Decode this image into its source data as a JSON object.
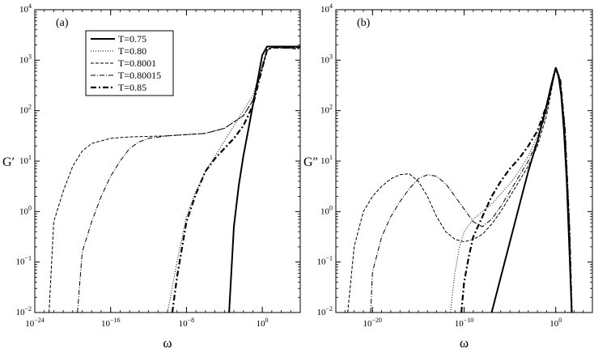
{
  "figure": {
    "background": "#ffffff",
    "ink": "#000000"
  },
  "chart_data": [
    {
      "type": "line",
      "panel_label": "(a)",
      "ylabel": "G′",
      "xlabel": "ω",
      "xscale": "log",
      "yscale": "log",
      "xlim_log10": [
        -24,
        4
      ],
      "ylim_log10": [
        -2,
        4
      ],
      "x_ticks": [
        {
          "log10": -24,
          "label": "10",
          "exp": "−24"
        },
        {
          "log10": -16,
          "label": "10",
          "exp": "−16"
        },
        {
          "log10": -8,
          "label": "10",
          "exp": "−8"
        },
        {
          "log10": 0,
          "label": "10",
          "exp": "0"
        }
      ],
      "y_ticks": [
        {
          "log10": -2,
          "label": "10",
          "exp": "−2"
        },
        {
          "log10": -1,
          "label": "10",
          "exp": "−1"
        },
        {
          "log10": 0,
          "label": "10",
          "exp": "0"
        },
        {
          "log10": 1,
          "label": "10",
          "exp": "1"
        },
        {
          "log10": 2,
          "label": "10",
          "exp": "2"
        },
        {
          "log10": 3,
          "label": "10",
          "exp": "3"
        },
        {
          "log10": 4,
          "label": "10",
          "exp": "4"
        }
      ],
      "legend": {
        "placement": "top-left",
        "entries": [
          {
            "label": "T=0.75",
            "style": "solid"
          },
          {
            "label": "T=0.80",
            "style": "dotted"
          },
          {
            "label": "T=0.8001",
            "style": "dashed"
          },
          {
            "label": "T=0.80015",
            "style": "dashdot"
          },
          {
            "label": "T=0.85",
            "style": "bold-dashdot"
          }
        ]
      },
      "series": [
        {
          "name": "T=0.75",
          "style": "solid",
          "log10_x": [
            -3.5,
            -3,
            -2.5,
            -2,
            -1.5,
            -1,
            -0.5,
            0,
            0.5,
            1,
            1.5,
            2,
            3,
            4
          ],
          "log10_y": [
            -2,
            -0.3,
            0.5,
            1.1,
            1.6,
            2.1,
            2.6,
            3.1,
            3.27,
            3.27,
            3.27,
            3.27,
            3.27,
            3.27
          ]
        },
        {
          "name": "T=0.80",
          "style": "dotted",
          "log10_x": [
            -10,
            -9,
            -8,
            -7,
            -6,
            -5,
            -4,
            -3,
            -2,
            -1,
            0,
            0.5,
            1,
            2,
            4
          ],
          "log10_y": [
            -2,
            -1,
            -0.1,
            0.4,
            0.8,
            1.1,
            1.4,
            1.7,
            2.0,
            2.3,
            2.9,
            3.2,
            3.25,
            3.25,
            3.25
          ]
        },
        {
          "name": "T=0.8001",
          "style": "dashed",
          "log10_x": [
            -22.5,
            -22,
            -21,
            -20,
            -19,
            -18,
            -16,
            -14,
            -10,
            -6,
            -4,
            -2,
            -1,
            0,
            0.5,
            1,
            4
          ],
          "log10_y": [
            -2,
            -0.2,
            0.4,
            0.9,
            1.2,
            1.35,
            1.45,
            1.48,
            1.5,
            1.55,
            1.65,
            1.9,
            2.2,
            2.85,
            3.2,
            3.25,
            3.25
          ]
        },
        {
          "name": "T=0.80015",
          "style": "dashdot",
          "log10_x": [
            -19.5,
            -19,
            -18,
            -17,
            -16,
            -15,
            -14,
            -13,
            -12,
            -10,
            -6,
            -4,
            -2,
            -1,
            0,
            0.5,
            1,
            4
          ],
          "log10_y": [
            -2,
            -0.8,
            -0.2,
            0.3,
            0.7,
            1.0,
            1.25,
            1.38,
            1.45,
            1.5,
            1.55,
            1.65,
            1.9,
            2.2,
            2.85,
            3.2,
            3.25,
            3.22
          ]
        },
        {
          "name": "T=0.85",
          "style": "bold-dashdot",
          "log10_x": [
            -9.5,
            -9,
            -8,
            -7,
            -6,
            -5,
            -4,
            -3,
            -2,
            -1,
            0,
            0.5,
            1,
            2,
            4
          ],
          "log10_y": [
            -2,
            -1.3,
            -0.2,
            0.35,
            0.8,
            1.05,
            1.25,
            1.45,
            1.7,
            2.1,
            2.85,
            3.2,
            3.25,
            3.25,
            3.25
          ]
        }
      ]
    },
    {
      "type": "line",
      "panel_label": "(b)",
      "ylabel": "G″",
      "xlabel": "ω",
      "xscale": "log",
      "yscale": "log",
      "xlim_log10": [
        -24,
        4
      ],
      "ylim_log10": [
        -2,
        4
      ],
      "x_ticks": [
        {
          "log10": -20,
          "label": "10",
          "exp": "−20"
        },
        {
          "log10": -10,
          "label": "10",
          "exp": "−10"
        },
        {
          "log10": 0,
          "label": "10",
          "exp": "0"
        }
      ],
      "y_ticks": [
        {
          "log10": -2,
          "label": "10",
          "exp": "−2"
        },
        {
          "log10": -1,
          "label": "10",
          "exp": "−1"
        },
        {
          "log10": 0,
          "label": "10",
          "exp": "0"
        },
        {
          "log10": 1,
          "label": "10",
          "exp": "1"
        },
        {
          "log10": 2,
          "label": "10",
          "exp": "2"
        },
        {
          "log10": 3,
          "label": "10",
          "exp": "3"
        },
        {
          "log10": 4,
          "label": "10",
          "exp": "4"
        }
      ],
      "series": [
        {
          "name": "T=0.75",
          "style": "solid",
          "log10_x": [
            -7,
            -6,
            -5,
            -4,
            -3,
            -2,
            -1,
            -0.5,
            0,
            0.3,
            0.6,
            0.9,
            1.2,
            1.5,
            1.75
          ],
          "log10_y": [
            -2,
            -1.3,
            -0.6,
            0.1,
            0.8,
            1.4,
            2.1,
            2.5,
            2.85,
            2.7,
            2.3,
            1.6,
            0.6,
            -0.8,
            -2
          ]
        },
        {
          "name": "T=0.80",
          "style": "dotted",
          "log10_x": [
            -11.5,
            -11,
            -10.5,
            -10,
            -9,
            -8,
            -7,
            -6,
            -5,
            -4,
            -3,
            -2,
            -1,
            0,
            0.5,
            1,
            1.5,
            1.75
          ],
          "log10_y": [
            -2,
            -1.2,
            -0.7,
            -0.4,
            -0.15,
            0,
            0.15,
            0.35,
            0.55,
            0.8,
            1.1,
            1.5,
            2.05,
            2.8,
            2.5,
            1.5,
            -0.5,
            -2
          ]
        },
        {
          "name": "T=0.8001",
          "style": "dashed",
          "log10_x": [
            -22.7,
            -22,
            -21,
            -20,
            -19,
            -18,
            -17,
            -16,
            -15,
            -14,
            -13,
            -12,
            -11,
            -10,
            -9,
            -8,
            -7,
            -6,
            -5,
            -4,
            -3,
            -2,
            -1,
            0,
            0.5,
            1,
            1.5,
            1.75
          ],
          "log10_y": [
            -2,
            -0.7,
            0,
            0.3,
            0.5,
            0.65,
            0.73,
            0.75,
            0.6,
            0.3,
            -0.1,
            -0.4,
            -0.55,
            -0.6,
            -0.55,
            -0.45,
            -0.25,
            0,
            0.3,
            0.6,
            0.9,
            1.3,
            1.9,
            2.85,
            2.6,
            1.7,
            -0.2,
            -2
          ]
        },
        {
          "name": "T=0.80015",
          "style": "dashdot",
          "log10_x": [
            -20.2,
            -20,
            -19,
            -18,
            -17,
            -16,
            -15,
            -14,
            -13,
            -12,
            -11,
            -10,
            -9,
            -8,
            -7,
            -6,
            -5,
            -4,
            -3,
            -2,
            -1,
            0,
            0.5,
            1,
            1.5,
            1.75
          ],
          "log10_y": [
            -2,
            -1.2,
            -0.5,
            -0.1,
            0.2,
            0.45,
            0.65,
            0.73,
            0.7,
            0.55,
            0.3,
            0.05,
            -0.2,
            -0.3,
            -0.15,
            0.1,
            0.4,
            0.7,
            1.0,
            1.4,
            2.0,
            2.85,
            2.6,
            1.6,
            -0.4,
            -2
          ]
        },
        {
          "name": "T=0.85",
          "style": "bold-dashdot",
          "log10_x": [
            -10.3,
            -10,
            -9.5,
            -9,
            -8,
            -7,
            -6,
            -5,
            -4,
            -3,
            -2,
            -1,
            0,
            0.5,
            1,
            1.5,
            1.75
          ],
          "log10_y": [
            -2,
            -1.4,
            -0.9,
            -0.5,
            -0.1,
            0.3,
            0.6,
            0.85,
            1.05,
            1.3,
            1.6,
            2.1,
            2.85,
            2.6,
            1.6,
            -0.4,
            -2
          ]
        }
      ]
    }
  ]
}
